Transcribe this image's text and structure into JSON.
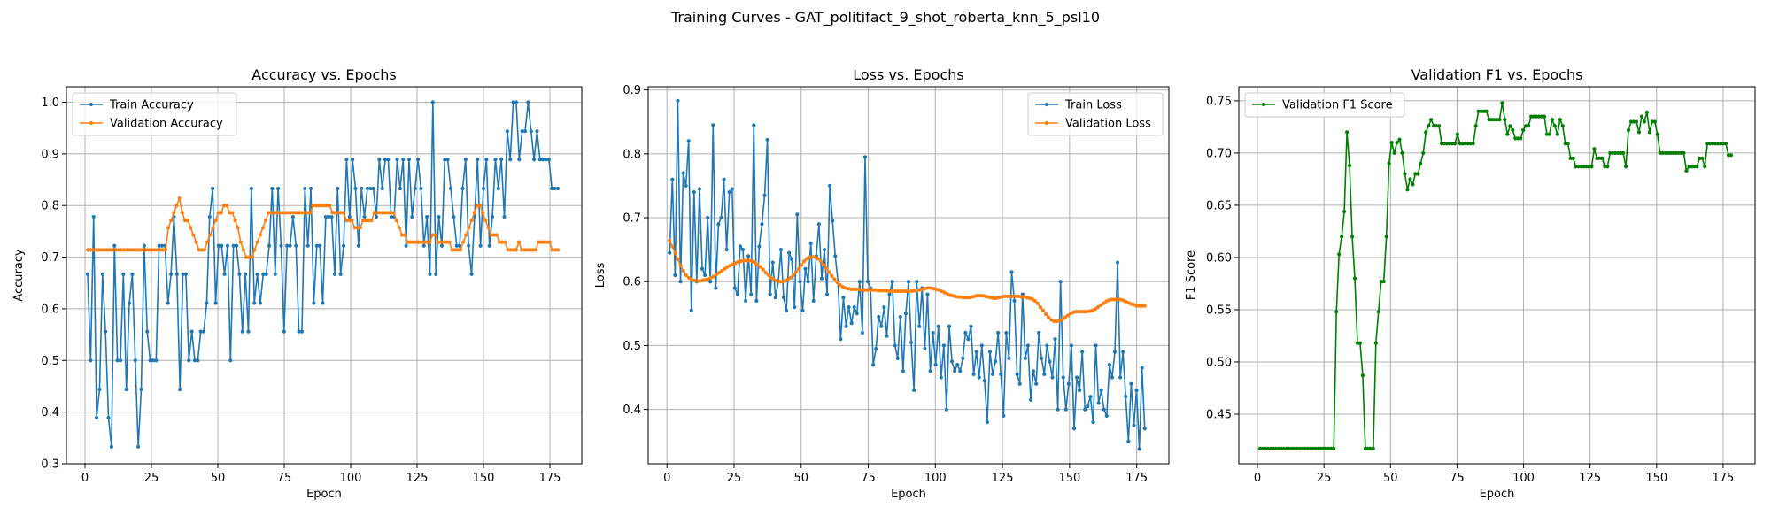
{
  "suptitle": "Training Curves - GAT_politifact_9_shot_roberta_knn_5_psl10",
  "chart_data": [
    {
      "type": "line",
      "title": "Accuracy vs. Epochs",
      "xlabel": "Epoch",
      "ylabel": "Accuracy",
      "xlim": [
        -7,
        187
      ],
      "ylim": [
        0.3,
        1.03
      ],
      "xticks": [
        0,
        25,
        50,
        75,
        100,
        125,
        150,
        175
      ],
      "yticks": [
        0.3,
        0.4,
        0.5,
        0.6,
        0.7,
        0.8,
        0.9,
        1.0
      ],
      "ytick_labels": [
        "0.3",
        "0.4",
        "0.5",
        "0.6",
        "0.7",
        "0.8",
        "0.9",
        "1.0"
      ],
      "grid": true,
      "legend": "upper-left",
      "series": [
        {
          "name": "Train Accuracy",
          "color": "#1f77b4",
          "y": [
            0.667,
            0.5,
            0.778,
            0.389,
            0.444,
            0.667,
            0.556,
            0.389,
            0.333,
            0.722,
            0.5,
            0.5,
            0.667,
            0.444,
            0.611,
            0.667,
            0.5,
            0.333,
            0.444,
            0.722,
            0.556,
            0.5,
            0.5,
            0.5,
            0.722,
            0.722,
            0.722,
            0.611,
            0.667,
            0.778,
            0.667,
            0.444,
            0.667,
            0.667,
            0.5,
            0.556,
            0.5,
            0.5,
            0.556,
            0.556,
            0.611,
            0.778,
            0.833,
            0.611,
            0.722,
            0.722,
            0.667,
            0.722,
            0.5,
            0.722,
            0.722,
            0.667,
            0.556,
            0.667,
            0.556,
            0.833,
            0.611,
            0.667,
            0.611,
            0.667,
            0.667,
            0.722,
            0.833,
            0.667,
            0.833,
            0.722,
            0.556,
            0.722,
            0.722,
            0.778,
            0.722,
            0.556,
            0.556,
            0.833,
            0.722,
            0.833,
            0.611,
            0.722,
            0.722,
            0.611,
            0.778,
            0.778,
            0.778,
            0.667,
            0.833,
            0.667,
            0.722,
            0.889,
            0.778,
            0.889,
            0.833,
            0.722,
            0.833,
            0.778,
            0.833,
            0.833,
            0.833,
            0.778,
            0.889,
            0.833,
            0.889,
            0.889,
            0.778,
            0.778,
            0.889,
            0.833,
            0.889,
            0.722,
            0.889,
            0.778,
            0.833,
            0.889,
            0.833,
            0.722,
            0.778,
            0.667,
            1.0,
            0.667,
            0.778,
            0.722,
            0.889,
            0.889,
            0.833,
            0.778,
            0.722,
            0.722,
            0.833,
            0.889,
            0.722,
            0.667,
            0.778,
            0.889,
            0.722,
            0.833,
            0.889,
            0.722,
            0.778,
            0.889,
            0.833,
            0.889,
            0.778,
            0.944,
            0.889,
            1.0,
            1.0,
            0.889,
            0.944,
            0.944,
            1.0,
            0.944,
            0.889,
            0.944,
            0.889,
            0.889,
            0.889,
            0.889,
            0.833,
            0.833,
            0.833
          ],
          "x_start": 1,
          "x_end": 178
        },
        {
          "name": "Validation Accuracy",
          "color": "#ff7f0e",
          "y": [
            0.714,
            0.714,
            0.714,
            0.714,
            0.714,
            0.714,
            0.714,
            0.714,
            0.714,
            0.714,
            0.714,
            0.714,
            0.714,
            0.714,
            0.714,
            0.714,
            0.714,
            0.714,
            0.714,
            0.714,
            0.714,
            0.714,
            0.714,
            0.714,
            0.714,
            0.714,
            0.714,
            0.714,
            0.714,
            0.757,
            0.771,
            0.786,
            0.8,
            0.814,
            0.786,
            0.771,
            0.771,
            0.757,
            0.743,
            0.729,
            0.714,
            0.714,
            0.714,
            0.729,
            0.743,
            0.757,
            0.771,
            0.786,
            0.786,
            0.8,
            0.8,
            0.786,
            0.786,
            0.771,
            0.757,
            0.729,
            0.714,
            0.7,
            0.7,
            0.7,
            0.714,
            0.729,
            0.743,
            0.757,
            0.771,
            0.786,
            0.786,
            0.786,
            0.786,
            0.786,
            0.786,
            0.786,
            0.786,
            0.786,
            0.786,
            0.786,
            0.786,
            0.786,
            0.786,
            0.786,
            0.786,
            0.8,
            0.8,
            0.8,
            0.8,
            0.8,
            0.8,
            0.8,
            0.786,
            0.786,
            0.786,
            0.786,
            0.786,
            0.771,
            0.771,
            0.771,
            0.757,
            0.757,
            0.757,
            0.771,
            0.771,
            0.771,
            0.771,
            0.786,
            0.786,
            0.786,
            0.786,
            0.786,
            0.786,
            0.786,
            0.786,
            0.771,
            0.757,
            0.743,
            0.743,
            0.729,
            0.729,
            0.729,
            0.729,
            0.729,
            0.729,
            0.729,
            0.729,
            0.729,
            0.743,
            0.743,
            0.729,
            0.729,
            0.729,
            0.729,
            0.729,
            0.714,
            0.714,
            0.714,
            0.714,
            0.729,
            0.743,
            0.757,
            0.771,
            0.786,
            0.8,
            0.8,
            0.786,
            0.771,
            0.757,
            0.743,
            0.743,
            0.743,
            0.729,
            0.729,
            0.729,
            0.714,
            0.714,
            0.714,
            0.714,
            0.729,
            0.714,
            0.714,
            0.714,
            0.714,
            0.714,
            0.714,
            0.729,
            0.729,
            0.729,
            0.729,
            0.729,
            0.714,
            0.714,
            0.714
          ],
          "x_start": 1,
          "x_end": 178
        }
      ]
    },
    {
      "type": "line",
      "title": "Loss vs. Epochs",
      "xlabel": "Epoch",
      "ylabel": "Loss",
      "xlim": [
        -7,
        187
      ],
      "ylim": [
        0.315,
        0.905
      ],
      "xticks": [
        0,
        25,
        50,
        75,
        100,
        125,
        150,
        175
      ],
      "yticks": [
        0.4,
        0.5,
        0.6,
        0.7,
        0.8,
        0.9
      ],
      "ytick_labels": [
        "0.4",
        "0.5",
        "0.6",
        "0.7",
        "0.8",
        "0.9"
      ],
      "grid": true,
      "legend": "upper-right",
      "series": [
        {
          "name": "Train Loss",
          "color": "#1f77b4",
          "y": [
            0.645,
            0.76,
            0.61,
            0.883,
            0.6,
            0.77,
            0.75,
            0.82,
            0.555,
            0.74,
            0.6,
            0.745,
            0.62,
            0.61,
            0.7,
            0.6,
            0.845,
            0.59,
            0.69,
            0.7,
            0.76,
            0.65,
            0.74,
            0.745,
            0.59,
            0.58,
            0.655,
            0.65,
            0.57,
            0.64,
            0.58,
            0.845,
            0.57,
            0.655,
            0.69,
            0.735,
            0.822,
            0.58,
            0.63,
            0.575,
            0.6,
            0.65,
            0.575,
            0.555,
            0.645,
            0.635,
            0.56,
            0.705,
            0.6,
            0.555,
            0.62,
            0.6,
            0.66,
            0.57,
            0.64,
            0.69,
            0.605,
            0.65,
            0.58,
            0.75,
            0.695,
            0.64,
            0.6,
            0.51,
            0.575,
            0.53,
            0.56,
            0.535,
            0.56,
            0.55,
            0.6,
            0.52,
            0.795,
            0.6,
            0.59,
            0.47,
            0.495,
            0.545,
            0.53,
            0.56,
            0.515,
            0.58,
            0.6,
            0.5,
            0.48,
            0.545,
            0.46,
            0.55,
            0.6,
            0.505,
            0.43,
            0.6,
            0.53,
            0.59,
            0.495,
            0.58,
            0.46,
            0.52,
            0.47,
            0.53,
            0.45,
            0.5,
            0.4,
            0.53,
            0.475,
            0.46,
            0.47,
            0.46,
            0.48,
            0.52,
            0.51,
            0.53,
            0.455,
            0.49,
            0.45,
            0.5,
            0.445,
            0.38,
            0.49,
            0.455,
            0.475,
            0.52,
            0.455,
            0.39,
            0.52,
            0.48,
            0.615,
            0.57,
            0.455,
            0.44,
            0.58,
            0.48,
            0.5,
            0.415,
            0.46,
            0.44,
            0.52,
            0.48,
            0.455,
            0.5,
            0.475,
            0.45,
            0.51,
            0.4,
            0.6,
            0.45,
            0.4,
            0.44,
            0.5,
            0.37,
            0.45,
            0.43,
            0.49,
            0.4,
            0.405,
            0.42,
            0.38,
            0.5,
            0.41,
            0.43,
            0.4,
            0.39,
            0.47,
            0.45,
            0.49,
            0.63,
            0.45,
            0.49,
            0.42,
            0.35,
            0.44,
            0.375,
            0.43,
            0.338,
            0.465,
            0.37
          ],
          "x_start": 1,
          "x_end": 178
        },
        {
          "name": "Validation Loss",
          "color": "#ff7f0e",
          "y": [
            0.664,
            0.655,
            0.645,
            0.635,
            0.625,
            0.617,
            0.61,
            0.606,
            0.603,
            0.602,
            0.601,
            0.601,
            0.602,
            0.603,
            0.604,
            0.606,
            0.608,
            0.611,
            0.614,
            0.617,
            0.62,
            0.623,
            0.625,
            0.627,
            0.629,
            0.631,
            0.632,
            0.633,
            0.633,
            0.633,
            0.632,
            0.63,
            0.627,
            0.623,
            0.619,
            0.614,
            0.61,
            0.606,
            0.603,
            0.601,
            0.6,
            0.6,
            0.601,
            0.603,
            0.606,
            0.61,
            0.615,
            0.62,
            0.626,
            0.632,
            0.636,
            0.638,
            0.639,
            0.638,
            0.636,
            0.632,
            0.627,
            0.621,
            0.615,
            0.609,
            0.604,
            0.599,
            0.595,
            0.592,
            0.59,
            0.589,
            0.588,
            0.588,
            0.588,
            0.588,
            0.587,
            0.587,
            0.587,
            0.587,
            0.587,
            0.587,
            0.586,
            0.586,
            0.586,
            0.586,
            0.585,
            0.585,
            0.585,
            0.585,
            0.585,
            0.585,
            0.585,
            0.585,
            0.585,
            0.586,
            0.586,
            0.587,
            0.588,
            0.589,
            0.59,
            0.59,
            0.589,
            0.588,
            0.587,
            0.585,
            0.583,
            0.581,
            0.579,
            0.578,
            0.577,
            0.576,
            0.576,
            0.575,
            0.575,
            0.575,
            0.576,
            0.577,
            0.578,
            0.578,
            0.578,
            0.577,
            0.576,
            0.575,
            0.574,
            0.574,
            0.575,
            0.576,
            0.577,
            0.577,
            0.577,
            0.577,
            0.577,
            0.577,
            0.576,
            0.576,
            0.575,
            0.574,
            0.573,
            0.57,
            0.566,
            0.56,
            0.555,
            0.549,
            0.544,
            0.54,
            0.538,
            0.538,
            0.539,
            0.541,
            0.544,
            0.547,
            0.55,
            0.552,
            0.553,
            0.553,
            0.553,
            0.553,
            0.553,
            0.554,
            0.555,
            0.557,
            0.56,
            0.563,
            0.566,
            0.569,
            0.571,
            0.572,
            0.572,
            0.572,
            0.572,
            0.571,
            0.569,
            0.567,
            0.565,
            0.564,
            0.562,
            0.562,
            0.562,
            0.562
          ],
          "x_start": 1,
          "x_end": 178
        }
      ]
    },
    {
      "type": "line",
      "title": "Validation F1 vs. Epochs",
      "xlabel": "Epoch",
      "ylabel": "F1 Score",
      "xlim": [
        -7,
        187
      ],
      "ylim": [
        0.4025,
        0.7635
      ],
      "xticks": [
        0,
        25,
        50,
        75,
        100,
        125,
        150,
        175
      ],
      "yticks": [
        0.45,
        0.5,
        0.55,
        0.6,
        0.65,
        0.7,
        0.75
      ],
      "ytick_labels": [
        "0.45",
        "0.50",
        "0.55",
        "0.60",
        "0.65",
        "0.70",
        "0.75"
      ],
      "grid": true,
      "legend": "upper-left",
      "series": [
        {
          "name": "Validation F1 Score",
          "color": "#008000",
          "y": [
            0.417,
            0.417,
            0.417,
            0.417,
            0.417,
            0.417,
            0.417,
            0.417,
            0.417,
            0.417,
            0.417,
            0.417,
            0.417,
            0.417,
            0.417,
            0.417,
            0.417,
            0.417,
            0.417,
            0.417,
            0.417,
            0.417,
            0.417,
            0.417,
            0.417,
            0.417,
            0.417,
            0.417,
            0.417,
            0.548,
            0.603,
            0.62,
            0.644,
            0.72,
            0.688,
            0.62,
            0.58,
            0.518,
            0.518,
            0.487,
            0.417,
            0.417,
            0.417,
            0.417,
            0.518,
            0.548,
            0.577,
            0.577,
            0.62,
            0.69,
            0.71,
            0.7,
            0.71,
            0.713,
            0.7,
            0.68,
            0.665,
            0.675,
            0.67,
            0.68,
            0.68,
            0.69,
            0.7,
            0.72,
            0.726,
            0.732,
            0.726,
            0.726,
            0.726,
            0.709,
            0.709,
            0.709,
            0.709,
            0.709,
            0.709,
            0.718,
            0.709,
            0.709,
            0.709,
            0.709,
            0.709,
            0.709,
            0.726,
            0.74,
            0.74,
            0.74,
            0.74,
            0.732,
            0.732,
            0.732,
            0.732,
            0.732,
            0.748,
            0.732,
            0.718,
            0.726,
            0.722,
            0.714,
            0.714,
            0.714,
            0.722,
            0.726,
            0.726,
            0.735,
            0.735,
            0.735,
            0.735,
            0.735,
            0.735,
            0.718,
            0.718,
            0.732,
            0.726,
            0.718,
            0.732,
            0.726,
            0.709,
            0.709,
            0.695,
            0.695,
            0.687,
            0.687,
            0.687,
            0.687,
            0.687,
            0.687,
            0.687,
            0.704,
            0.695,
            0.695,
            0.695,
            0.687,
            0.687,
            0.7,
            0.7,
            0.7,
            0.7,
            0.7,
            0.7,
            0.687,
            0.722,
            0.73,
            0.73,
            0.73,
            0.72,
            0.735,
            0.73,
            0.739,
            0.72,
            0.73,
            0.73,
            0.718,
            0.7,
            0.7,
            0.7,
            0.7,
            0.7,
            0.7,
            0.7,
            0.7,
            0.7,
            0.7,
            0.683,
            0.687,
            0.687,
            0.687,
            0.687,
            0.695,
            0.695,
            0.687,
            0.709,
            0.709,
            0.709,
            0.709,
            0.709,
            0.709,
            0.709,
            0.709,
            0.698,
            0.698
          ],
          "x_start": 1,
          "x_end": 178
        }
      ]
    }
  ]
}
